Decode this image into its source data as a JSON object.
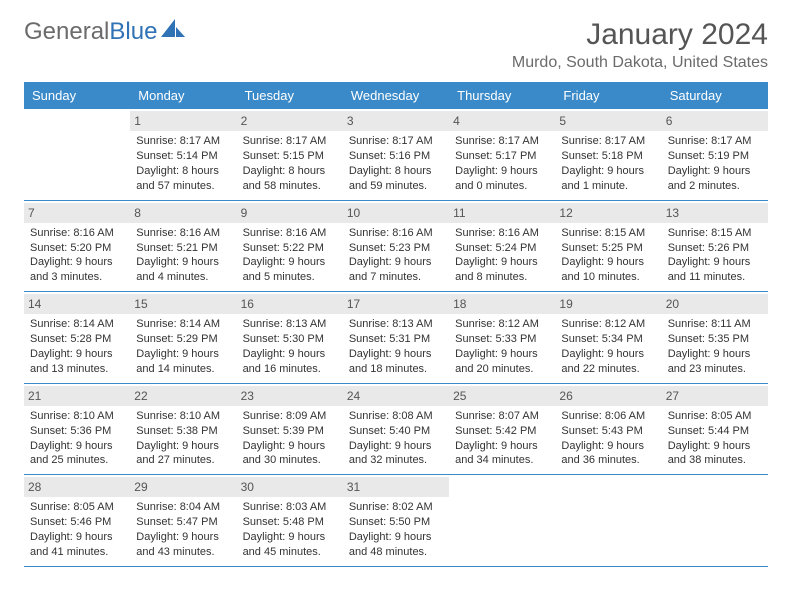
{
  "logo": {
    "part1": "General",
    "part2": "Blue"
  },
  "title": "January 2024",
  "location": "Murdo, South Dakota, United States",
  "colors": {
    "header_bg": "#3a8ac9",
    "header_text": "#ffffff",
    "daynum_bg": "#e9e9e9",
    "row_border": "#3a8ac9",
    "body_text": "#333333",
    "title_text": "#555555",
    "logo_gray": "#6b6b6b",
    "logo_blue": "#2f72b5",
    "page_bg": "#ffffff"
  },
  "typography": {
    "month_title_size": 30,
    "location_size": 16,
    "day_header_size": 13,
    "cell_size": 11
  },
  "day_names": [
    "Sunday",
    "Monday",
    "Tuesday",
    "Wednesday",
    "Thursday",
    "Friday",
    "Saturday"
  ],
  "weeks": [
    [
      {
        "num": "",
        "sunrise": "",
        "sunset": "",
        "daylight1": "",
        "daylight2": ""
      },
      {
        "num": "1",
        "sunrise": "Sunrise: 8:17 AM",
        "sunset": "Sunset: 5:14 PM",
        "daylight1": "Daylight: 8 hours",
        "daylight2": "and 57 minutes."
      },
      {
        "num": "2",
        "sunrise": "Sunrise: 8:17 AM",
        "sunset": "Sunset: 5:15 PM",
        "daylight1": "Daylight: 8 hours",
        "daylight2": "and 58 minutes."
      },
      {
        "num": "3",
        "sunrise": "Sunrise: 8:17 AM",
        "sunset": "Sunset: 5:16 PM",
        "daylight1": "Daylight: 8 hours",
        "daylight2": "and 59 minutes."
      },
      {
        "num": "4",
        "sunrise": "Sunrise: 8:17 AM",
        "sunset": "Sunset: 5:17 PM",
        "daylight1": "Daylight: 9 hours",
        "daylight2": "and 0 minutes."
      },
      {
        "num": "5",
        "sunrise": "Sunrise: 8:17 AM",
        "sunset": "Sunset: 5:18 PM",
        "daylight1": "Daylight: 9 hours",
        "daylight2": "and 1 minute."
      },
      {
        "num": "6",
        "sunrise": "Sunrise: 8:17 AM",
        "sunset": "Sunset: 5:19 PM",
        "daylight1": "Daylight: 9 hours",
        "daylight2": "and 2 minutes."
      }
    ],
    [
      {
        "num": "7",
        "sunrise": "Sunrise: 8:16 AM",
        "sunset": "Sunset: 5:20 PM",
        "daylight1": "Daylight: 9 hours",
        "daylight2": "and 3 minutes."
      },
      {
        "num": "8",
        "sunrise": "Sunrise: 8:16 AM",
        "sunset": "Sunset: 5:21 PM",
        "daylight1": "Daylight: 9 hours",
        "daylight2": "and 4 minutes."
      },
      {
        "num": "9",
        "sunrise": "Sunrise: 8:16 AM",
        "sunset": "Sunset: 5:22 PM",
        "daylight1": "Daylight: 9 hours",
        "daylight2": "and 5 minutes."
      },
      {
        "num": "10",
        "sunrise": "Sunrise: 8:16 AM",
        "sunset": "Sunset: 5:23 PM",
        "daylight1": "Daylight: 9 hours",
        "daylight2": "and 7 minutes."
      },
      {
        "num": "11",
        "sunrise": "Sunrise: 8:16 AM",
        "sunset": "Sunset: 5:24 PM",
        "daylight1": "Daylight: 9 hours",
        "daylight2": "and 8 minutes."
      },
      {
        "num": "12",
        "sunrise": "Sunrise: 8:15 AM",
        "sunset": "Sunset: 5:25 PM",
        "daylight1": "Daylight: 9 hours",
        "daylight2": "and 10 minutes."
      },
      {
        "num": "13",
        "sunrise": "Sunrise: 8:15 AM",
        "sunset": "Sunset: 5:26 PM",
        "daylight1": "Daylight: 9 hours",
        "daylight2": "and 11 minutes."
      }
    ],
    [
      {
        "num": "14",
        "sunrise": "Sunrise: 8:14 AM",
        "sunset": "Sunset: 5:28 PM",
        "daylight1": "Daylight: 9 hours",
        "daylight2": "and 13 minutes."
      },
      {
        "num": "15",
        "sunrise": "Sunrise: 8:14 AM",
        "sunset": "Sunset: 5:29 PM",
        "daylight1": "Daylight: 9 hours",
        "daylight2": "and 14 minutes."
      },
      {
        "num": "16",
        "sunrise": "Sunrise: 8:13 AM",
        "sunset": "Sunset: 5:30 PM",
        "daylight1": "Daylight: 9 hours",
        "daylight2": "and 16 minutes."
      },
      {
        "num": "17",
        "sunrise": "Sunrise: 8:13 AM",
        "sunset": "Sunset: 5:31 PM",
        "daylight1": "Daylight: 9 hours",
        "daylight2": "and 18 minutes."
      },
      {
        "num": "18",
        "sunrise": "Sunrise: 8:12 AM",
        "sunset": "Sunset: 5:33 PM",
        "daylight1": "Daylight: 9 hours",
        "daylight2": "and 20 minutes."
      },
      {
        "num": "19",
        "sunrise": "Sunrise: 8:12 AM",
        "sunset": "Sunset: 5:34 PM",
        "daylight1": "Daylight: 9 hours",
        "daylight2": "and 22 minutes."
      },
      {
        "num": "20",
        "sunrise": "Sunrise: 8:11 AM",
        "sunset": "Sunset: 5:35 PM",
        "daylight1": "Daylight: 9 hours",
        "daylight2": "and 23 minutes."
      }
    ],
    [
      {
        "num": "21",
        "sunrise": "Sunrise: 8:10 AM",
        "sunset": "Sunset: 5:36 PM",
        "daylight1": "Daylight: 9 hours",
        "daylight2": "and 25 minutes."
      },
      {
        "num": "22",
        "sunrise": "Sunrise: 8:10 AM",
        "sunset": "Sunset: 5:38 PM",
        "daylight1": "Daylight: 9 hours",
        "daylight2": "and 27 minutes."
      },
      {
        "num": "23",
        "sunrise": "Sunrise: 8:09 AM",
        "sunset": "Sunset: 5:39 PM",
        "daylight1": "Daylight: 9 hours",
        "daylight2": "and 30 minutes."
      },
      {
        "num": "24",
        "sunrise": "Sunrise: 8:08 AM",
        "sunset": "Sunset: 5:40 PM",
        "daylight1": "Daylight: 9 hours",
        "daylight2": "and 32 minutes."
      },
      {
        "num": "25",
        "sunrise": "Sunrise: 8:07 AM",
        "sunset": "Sunset: 5:42 PM",
        "daylight1": "Daylight: 9 hours",
        "daylight2": "and 34 minutes."
      },
      {
        "num": "26",
        "sunrise": "Sunrise: 8:06 AM",
        "sunset": "Sunset: 5:43 PM",
        "daylight1": "Daylight: 9 hours",
        "daylight2": "and 36 minutes."
      },
      {
        "num": "27",
        "sunrise": "Sunrise: 8:05 AM",
        "sunset": "Sunset: 5:44 PM",
        "daylight1": "Daylight: 9 hours",
        "daylight2": "and 38 minutes."
      }
    ],
    [
      {
        "num": "28",
        "sunrise": "Sunrise: 8:05 AM",
        "sunset": "Sunset: 5:46 PM",
        "daylight1": "Daylight: 9 hours",
        "daylight2": "and 41 minutes."
      },
      {
        "num": "29",
        "sunrise": "Sunrise: 8:04 AM",
        "sunset": "Sunset: 5:47 PM",
        "daylight1": "Daylight: 9 hours",
        "daylight2": "and 43 minutes."
      },
      {
        "num": "30",
        "sunrise": "Sunrise: 8:03 AM",
        "sunset": "Sunset: 5:48 PM",
        "daylight1": "Daylight: 9 hours",
        "daylight2": "and 45 minutes."
      },
      {
        "num": "31",
        "sunrise": "Sunrise: 8:02 AM",
        "sunset": "Sunset: 5:50 PM",
        "daylight1": "Daylight: 9 hours",
        "daylight2": "and 48 minutes."
      },
      {
        "num": "",
        "sunrise": "",
        "sunset": "",
        "daylight1": "",
        "daylight2": ""
      },
      {
        "num": "",
        "sunrise": "",
        "sunset": "",
        "daylight1": "",
        "daylight2": ""
      },
      {
        "num": "",
        "sunrise": "",
        "sunset": "",
        "daylight1": "",
        "daylight2": ""
      }
    ]
  ]
}
